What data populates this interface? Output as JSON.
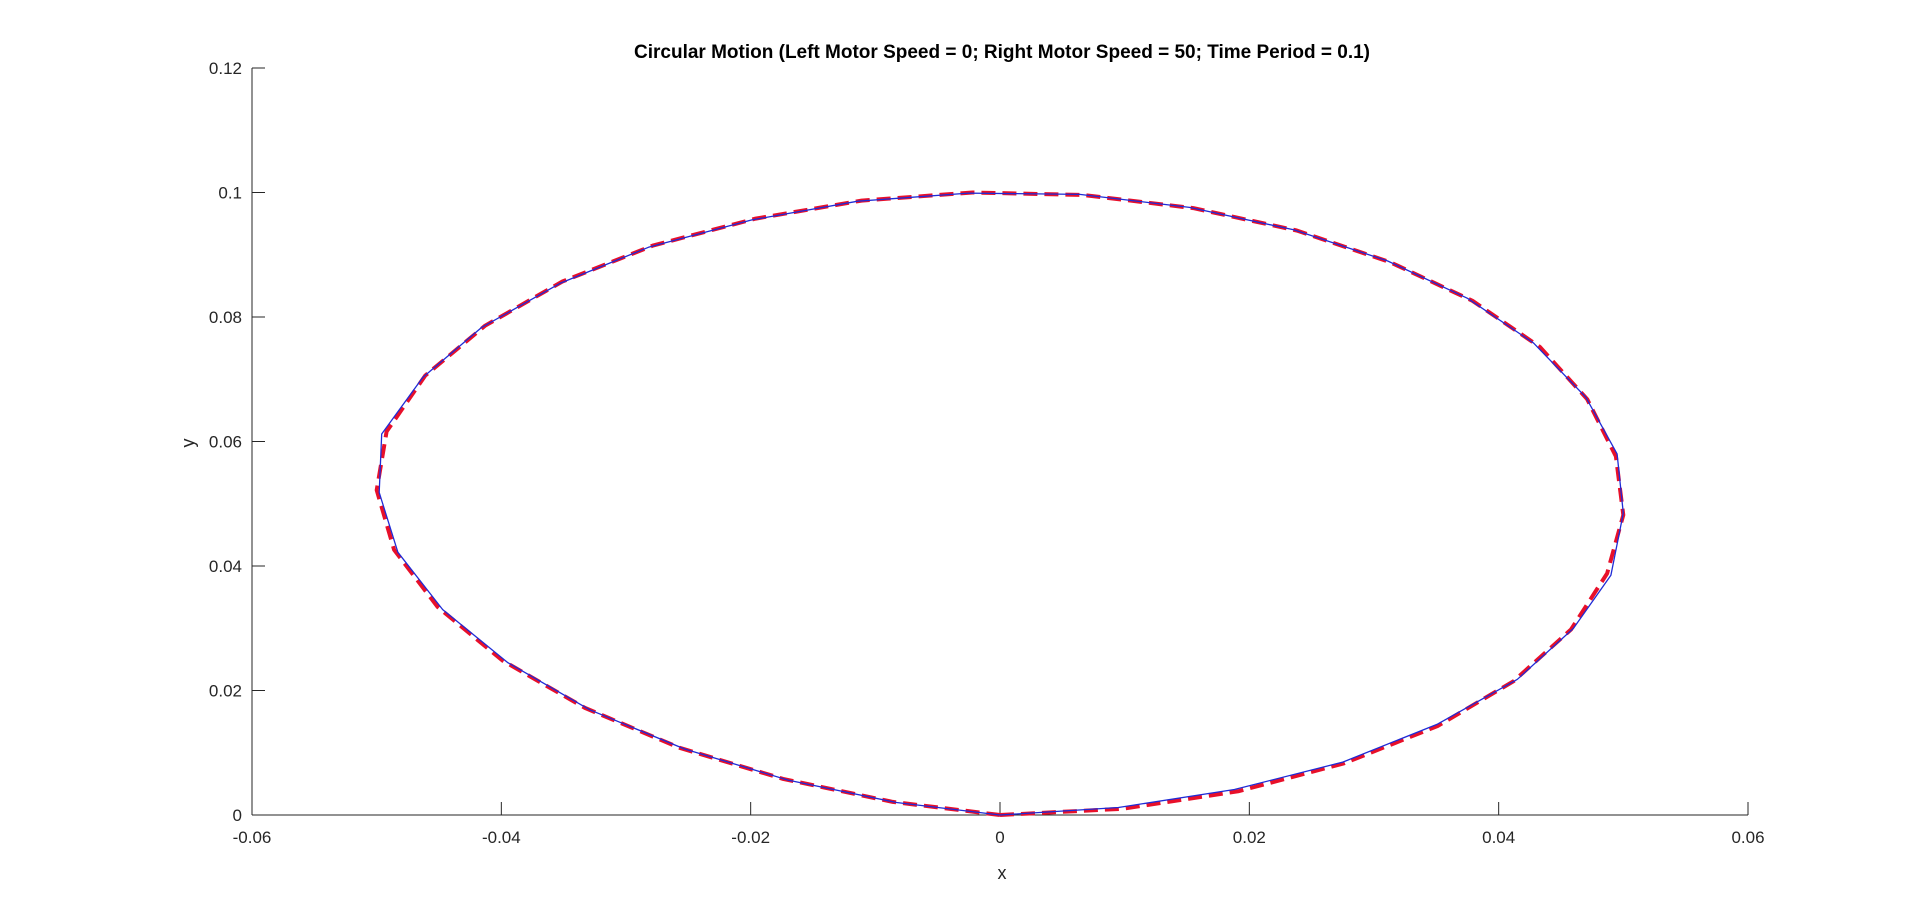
{
  "chart_data": {
    "type": "line",
    "title": "Circular Motion (Left Motor Speed = 0; Right Motor Speed = 50; Time Period = 0.1)",
    "xlabel": "x",
    "ylabel": "y",
    "xlim": [
      -0.06,
      0.06
    ],
    "ylim": [
      0,
      0.12
    ],
    "xticks": [
      -0.06,
      -0.04,
      -0.02,
      0,
      0.02,
      0.04,
      0.06
    ],
    "xtick_labels": [
      "-0.06",
      "-0.04",
      "-0.02",
      "0",
      "0.02",
      "0.04",
      "0.06"
    ],
    "yticks": [
      0,
      0.02,
      0.04,
      0.06,
      0.08,
      0.1,
      0.12
    ],
    "ytick_labels": [
      "0",
      "0.02",
      "0.04",
      "0.06",
      "0.08",
      "0.1",
      "0.12"
    ],
    "grid": false,
    "series": [
      {
        "style": "dashed",
        "color": "#e8102a",
        "x": [
          0,
          0.0098,
          0.0191,
          0.0276,
          0.0351,
          0.0412,
          0.0458,
          0.0487,
          0.05,
          0.0494,
          0.0471,
          0.0433,
          0.0379,
          0.0313,
          0.0238,
          0.0155,
          0.0067,
          -0.0022,
          -0.0111,
          -0.0196,
          -0.0278,
          -0.0351,
          -0.0413,
          -0.0461,
          -0.0492,
          -0.05,
          -0.0486,
          -0.0451,
          -0.0399,
          -0.0333,
          -0.0257,
          -0.0174,
          -0.0086,
          0
        ],
        "y": [
          0,
          0.001,
          0.0038,
          0.0083,
          0.0143,
          0.0215,
          0.0298,
          0.0388,
          0.0482,
          0.0576,
          0.0668,
          0.0752,
          0.0826,
          0.0888,
          0.0939,
          0.0975,
          0.0996,
          0.1,
          0.0987,
          0.0958,
          0.0915,
          0.0857,
          0.0786,
          0.0706,
          0.0616,
          0.0522,
          0.0426,
          0.0334,
          0.0248,
          0.0172,
          0.0108,
          0.0058,
          0.0021,
          0
        ]
      },
      {
        "style": "solid",
        "color": "#1f2bd6",
        "x": [
          0,
          0.0095,
          0.0188,
          0.0275,
          0.0351,
          0.0415,
          0.046,
          0.049,
          0.05,
          0.0495,
          0.047,
          0.0428,
          0.0375,
          0.0311,
          0.0236,
          0.0152,
          0.0064,
          -0.0025,
          -0.0114,
          -0.0199,
          -0.0282,
          -0.0353,
          -0.0416,
          -0.0463,
          -0.0496,
          -0.0498,
          -0.0483,
          -0.0447,
          -0.0395,
          -0.0329,
          -0.0253,
          -0.017,
          -0.0083,
          0
        ],
        "y": [
          0,
          0.0012,
          0.0041,
          0.0085,
          0.0146,
          0.0218,
          0.03,
          0.0385,
          0.0485,
          0.058,
          0.0671,
          0.0758,
          0.083,
          0.089,
          0.094,
          0.0976,
          0.0997,
          0.0999,
          0.0986,
          0.0956,
          0.0912,
          0.0854,
          0.0783,
          0.0703,
          0.0612,
          0.0518,
          0.0422,
          0.033,
          0.0245,
          0.0169,
          0.0106,
          0.0056,
          0.002,
          0
        ]
      }
    ]
  }
}
